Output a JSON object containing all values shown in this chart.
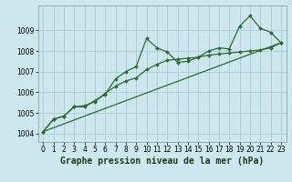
{
  "background_color": "#cce8ee",
  "grid_color": "#aaccd4",
  "line_color": "#2d6a2d",
  "marker_color": "#2d6a2d",
  "xlabel": "Graphe pression niveau de la mer (hPa)",
  "xlabel_fontsize": 7,
  "xlim": [
    -0.5,
    23.5
  ],
  "ylim": [
    1003.6,
    1010.2
  ],
  "xticks": [
    0,
    1,
    2,
    3,
    4,
    5,
    6,
    7,
    8,
    9,
    10,
    11,
    12,
    13,
    14,
    15,
    16,
    17,
    18,
    19,
    20,
    21,
    22,
    23
  ],
  "yticks": [
    1004,
    1005,
    1006,
    1007,
    1008,
    1009
  ],
  "series1_x": [
    0,
    1,
    2,
    3,
    4,
    5,
    6,
    7,
    8,
    9,
    10,
    11,
    12,
    13,
    14,
    15,
    16,
    17,
    18,
    19,
    20,
    21,
    22,
    23
  ],
  "series1_y": [
    1004.1,
    1004.7,
    1004.85,
    1005.3,
    1005.3,
    1005.6,
    1005.9,
    1006.65,
    1007.0,
    1007.25,
    1008.6,
    1008.15,
    1007.95,
    1007.45,
    1007.5,
    1007.7,
    1008.0,
    1008.15,
    1008.1,
    1009.2,
    1009.7,
    1009.1,
    1008.9,
    1008.4
  ],
  "series2_x": [
    0,
    1,
    2,
    3,
    4,
    5,
    6,
    7,
    8,
    9,
    10,
    11,
    12,
    13,
    14,
    15,
    16,
    17,
    18,
    19,
    20,
    21,
    22,
    23
  ],
  "series2_y": [
    1004.1,
    1004.7,
    1004.85,
    1005.3,
    1005.35,
    1005.55,
    1005.95,
    1006.3,
    1006.55,
    1006.7,
    1007.1,
    1007.35,
    1007.55,
    1007.6,
    1007.65,
    1007.7,
    1007.8,
    1007.85,
    1007.9,
    1007.95,
    1008.0,
    1008.05,
    1008.15,
    1008.4
  ],
  "series3_x": [
    0,
    23
  ],
  "series3_y": [
    1004.1,
    1008.4
  ],
  "tick_fontsize": 5.5,
  "linewidth": 0.9
}
